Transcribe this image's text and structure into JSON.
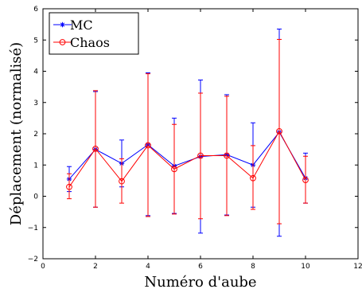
{
  "chart_data": {
    "type": "line",
    "title": "",
    "xlabel": "Numéro d'aube",
    "ylabel": "Déplacement (normalisé)",
    "xlim": [
      0,
      12
    ],
    "ylim": [
      -2,
      6
    ],
    "x_ticks": [
      "0",
      "2",
      "4",
      "6",
      "8",
      "10",
      "12"
    ],
    "y_ticks": [
      "−2",
      "−1",
      "0",
      "1",
      "2",
      "3",
      "4",
      "5",
      "6"
    ],
    "grid": false,
    "legend_position": "top-left",
    "x": [
      1,
      2,
      3,
      4,
      5,
      6,
      7,
      8,
      9,
      10
    ],
    "series": [
      {
        "name": "MC",
        "color": "#0000ff",
        "marker": "star",
        "values": [
          0.55,
          1.5,
          1.05,
          1.65,
          0.97,
          1.27,
          1.33,
          1.0,
          2.05,
          0.58
        ],
        "lower": [
          0.15,
          -0.35,
          0.3,
          -0.62,
          -0.55,
          -1.18,
          -0.6,
          -0.35,
          -1.28,
          -0.22
        ],
        "upper": [
          0.95,
          3.35,
          1.8,
          3.95,
          2.5,
          3.72,
          3.25,
          2.35,
          5.35,
          1.38
        ]
      },
      {
        "name": "Chaos",
        "color": "#ff0000",
        "marker": "circle",
        "values": [
          0.3,
          1.52,
          0.48,
          1.63,
          0.87,
          1.3,
          1.3,
          0.58,
          2.08,
          0.52
        ],
        "lower": [
          -0.08,
          -0.35,
          -0.22,
          -0.65,
          -0.57,
          -0.72,
          -0.62,
          -0.42,
          -0.88,
          -0.22
        ],
        "upper": [
          0.72,
          3.38,
          1.2,
          3.92,
          2.3,
          3.3,
          3.2,
          1.62,
          5.02,
          1.28
        ]
      }
    ]
  }
}
